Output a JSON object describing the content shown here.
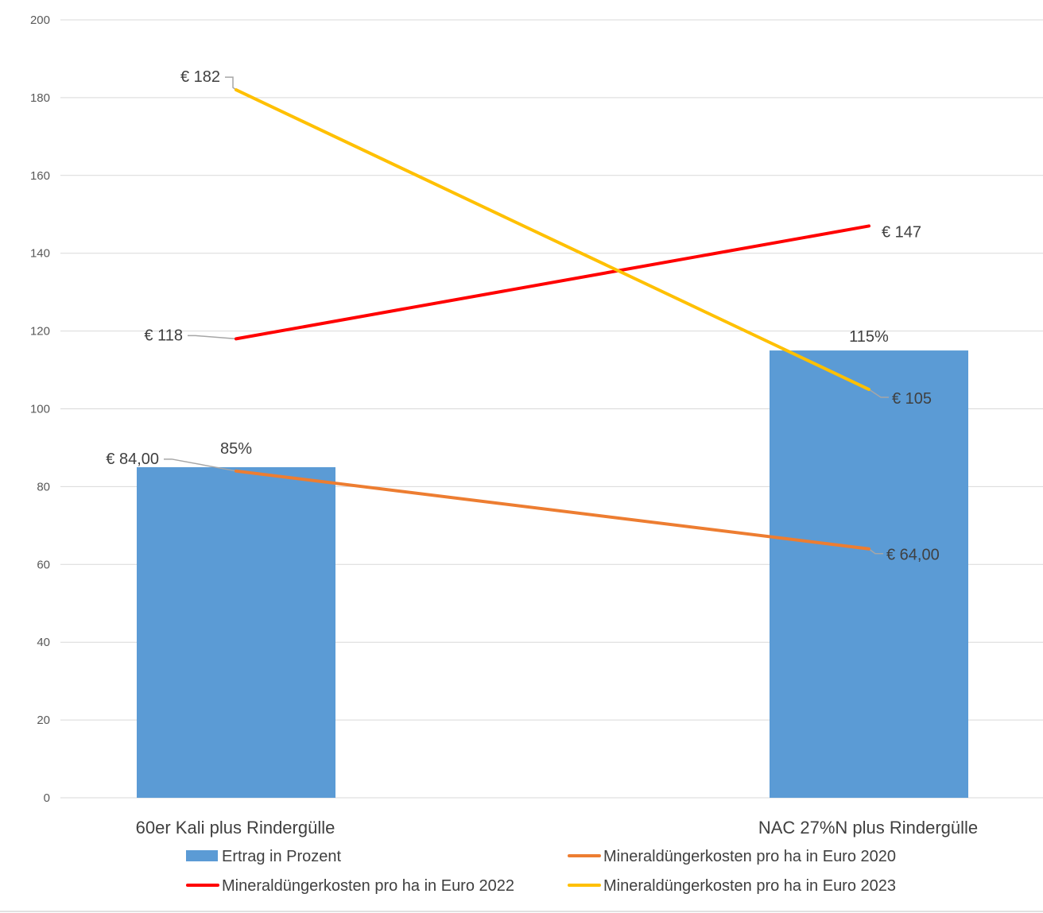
{
  "chart_data": {
    "type": "bar",
    "categories": [
      "60er Kali plus Rindergülle",
      "NAC 27%N  plus Rindergülle"
    ],
    "ylim": [
      0,
      200
    ],
    "yticks": [
      0,
      20,
      40,
      60,
      80,
      100,
      120,
      140,
      160,
      180,
      200
    ],
    "grid": true,
    "legend_position": "bottom",
    "series": [
      {
        "name": "Ertrag in Prozent",
        "kind": "bar",
        "color": "#5b9bd5",
        "values": [
          85,
          115
        ],
        "labels": [
          "85%",
          "115%"
        ]
      },
      {
        "name": "Mineraldüngerkosten pro ha in Euro 2020",
        "kind": "line",
        "color": "#ed7d31",
        "values": [
          84,
          64
        ],
        "labels": [
          "€ 84,00",
          "€ 64,00"
        ]
      },
      {
        "name": "Mineraldüngerkosten pro ha in Euro 2022",
        "kind": "line",
        "color": "#ff0000",
        "values": [
          118,
          147
        ],
        "labels": [
          "€ 118",
          "€ 147"
        ]
      },
      {
        "name": "Mineraldüngerkosten pro ha in Euro 2023",
        "kind": "line",
        "color": "#ffc000",
        "values": [
          182,
          105
        ],
        "labels": [
          "€ 182",
          "€ 105"
        ]
      }
    ]
  }
}
